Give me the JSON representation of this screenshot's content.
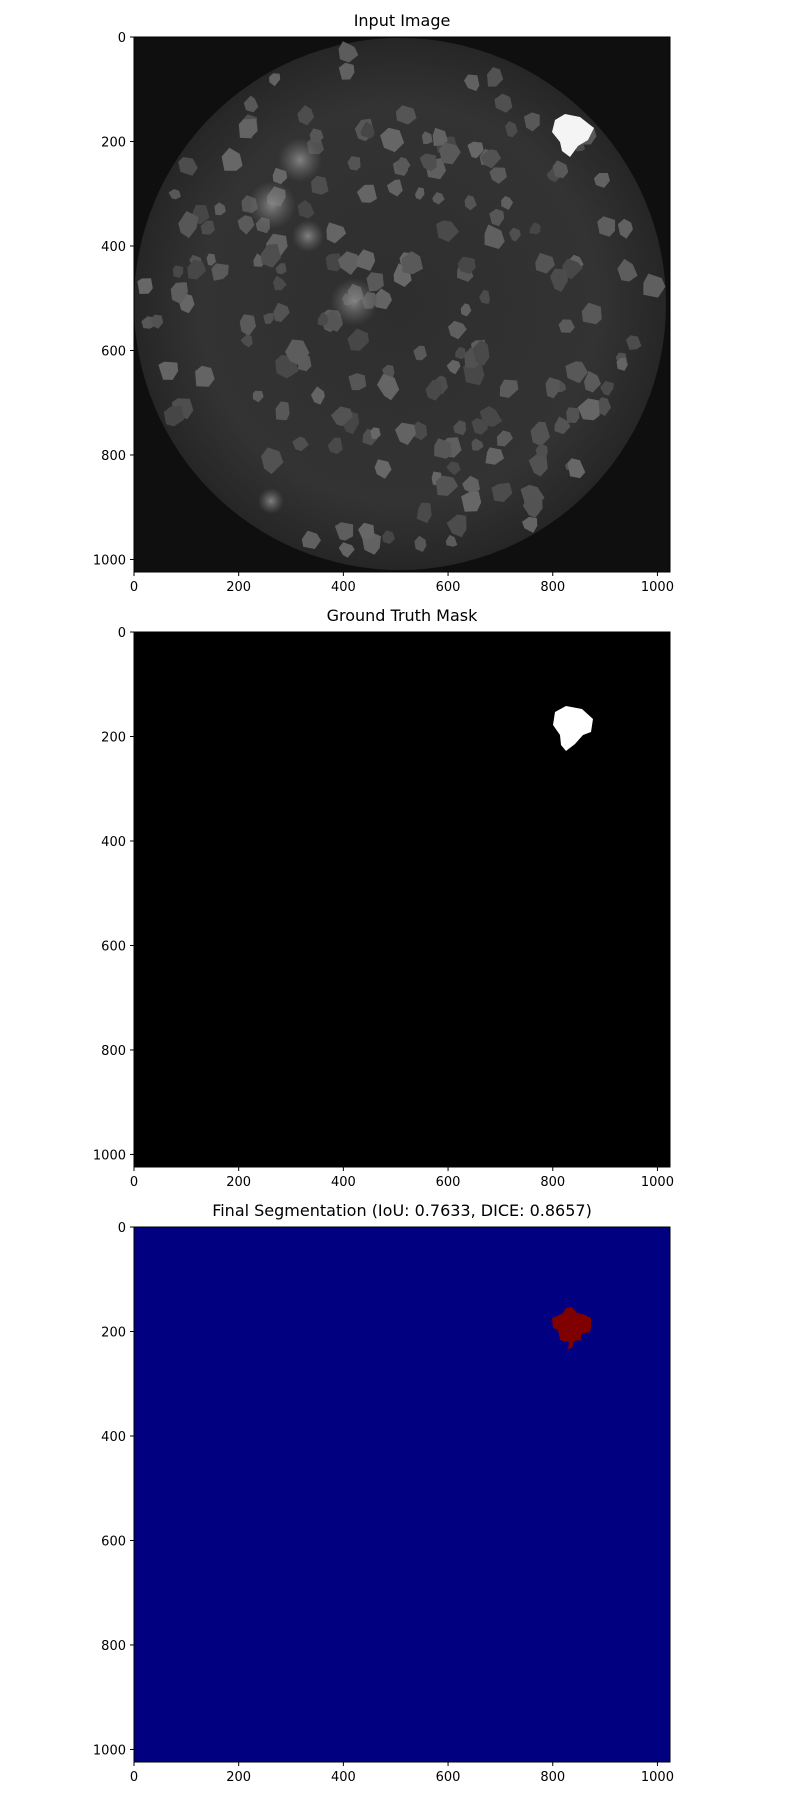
{
  "chart_data": [
    {
      "type": "heatmap",
      "title": "Input Image",
      "colormap": "gray",
      "image_size": [
        1024,
        1024
      ],
      "xlim": [
        0,
        1024
      ],
      "ylim": [
        1024,
        0
      ],
      "x_ticks": [
        0,
        200,
        400,
        600,
        800,
        1000
      ],
      "y_ticks": [
        0,
        200,
        400,
        600,
        800,
        1000
      ],
      "content": "grayscale microscopy image of a circular well with many gray cell-like blobs and one bright white cell",
      "grid": false,
      "legend": "none"
    },
    {
      "type": "heatmap",
      "title": "Ground Truth Mask",
      "colormap": "gray",
      "image_size": [
        1024,
        1024
      ],
      "xlim": [
        0,
        1024
      ],
      "ylim": [
        1024,
        0
      ],
      "x_ticks": [
        0,
        200,
        400,
        600,
        800,
        1000
      ],
      "y_ticks": [
        0,
        200,
        400,
        600,
        800,
        1000
      ],
      "mask_center_approx": [
        840,
        185
      ],
      "background_color": "#000000",
      "mask_color": "#ffffff",
      "grid": false,
      "legend": "none"
    },
    {
      "type": "heatmap",
      "title": "Final Segmentation (IoU: 0.7633, DICE: 0.8657)",
      "colormap": "jet",
      "image_size": [
        1024,
        1024
      ],
      "xlim": [
        0,
        1024
      ],
      "ylim": [
        1024,
        0
      ],
      "x_ticks": [
        0,
        200,
        400,
        600,
        800,
        1000
      ],
      "y_ticks": [
        0,
        200,
        400,
        600,
        800,
        1000
      ],
      "mask_center_approx": [
        840,
        190
      ],
      "background_color": "#000080",
      "mask_color": "#800000",
      "grid": false,
      "legend": "none"
    }
  ]
}
